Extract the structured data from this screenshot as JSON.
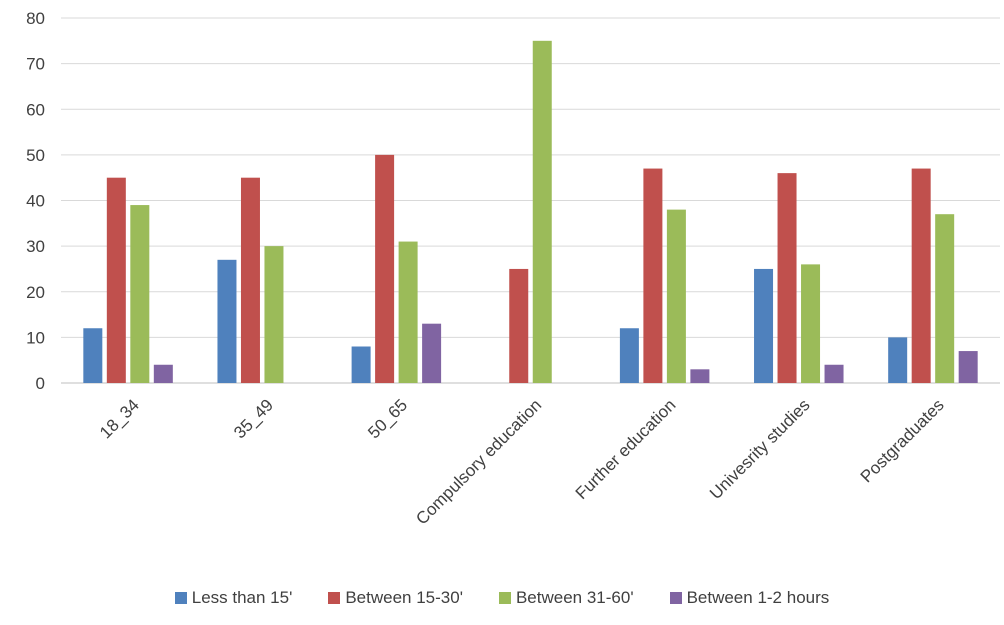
{
  "chart_data": {
    "type": "bar",
    "categories": [
      "18_34",
      "35_49",
      "50_65",
      "Compulsory education",
      "Further education",
      "Univesrity studies",
      "Postgraduates"
    ],
    "series": [
      {
        "name": "Less than 15'",
        "color": "#4F81BD",
        "values": [
          12,
          27,
          8,
          0,
          12,
          25,
          10
        ]
      },
      {
        "name": "Between 15-30'",
        "color": "#C0504D",
        "values": [
          45,
          45,
          50,
          25,
          47,
          46,
          47
        ]
      },
      {
        "name": "Between 31-60'",
        "color": "#9BBB59",
        "values": [
          39,
          30,
          31,
          75,
          38,
          26,
          37
        ]
      },
      {
        "name": "Between 1-2 hours",
        "color": "#8064A2",
        "values": [
          4,
          0,
          13,
          0,
          3,
          4,
          7
        ]
      }
    ],
    "ylim": [
      0,
      80
    ],
    "yticks": [
      0,
      10,
      20,
      30,
      40,
      50,
      60,
      70,
      80
    ],
    "grid": true,
    "legend_position": "bottom"
  }
}
